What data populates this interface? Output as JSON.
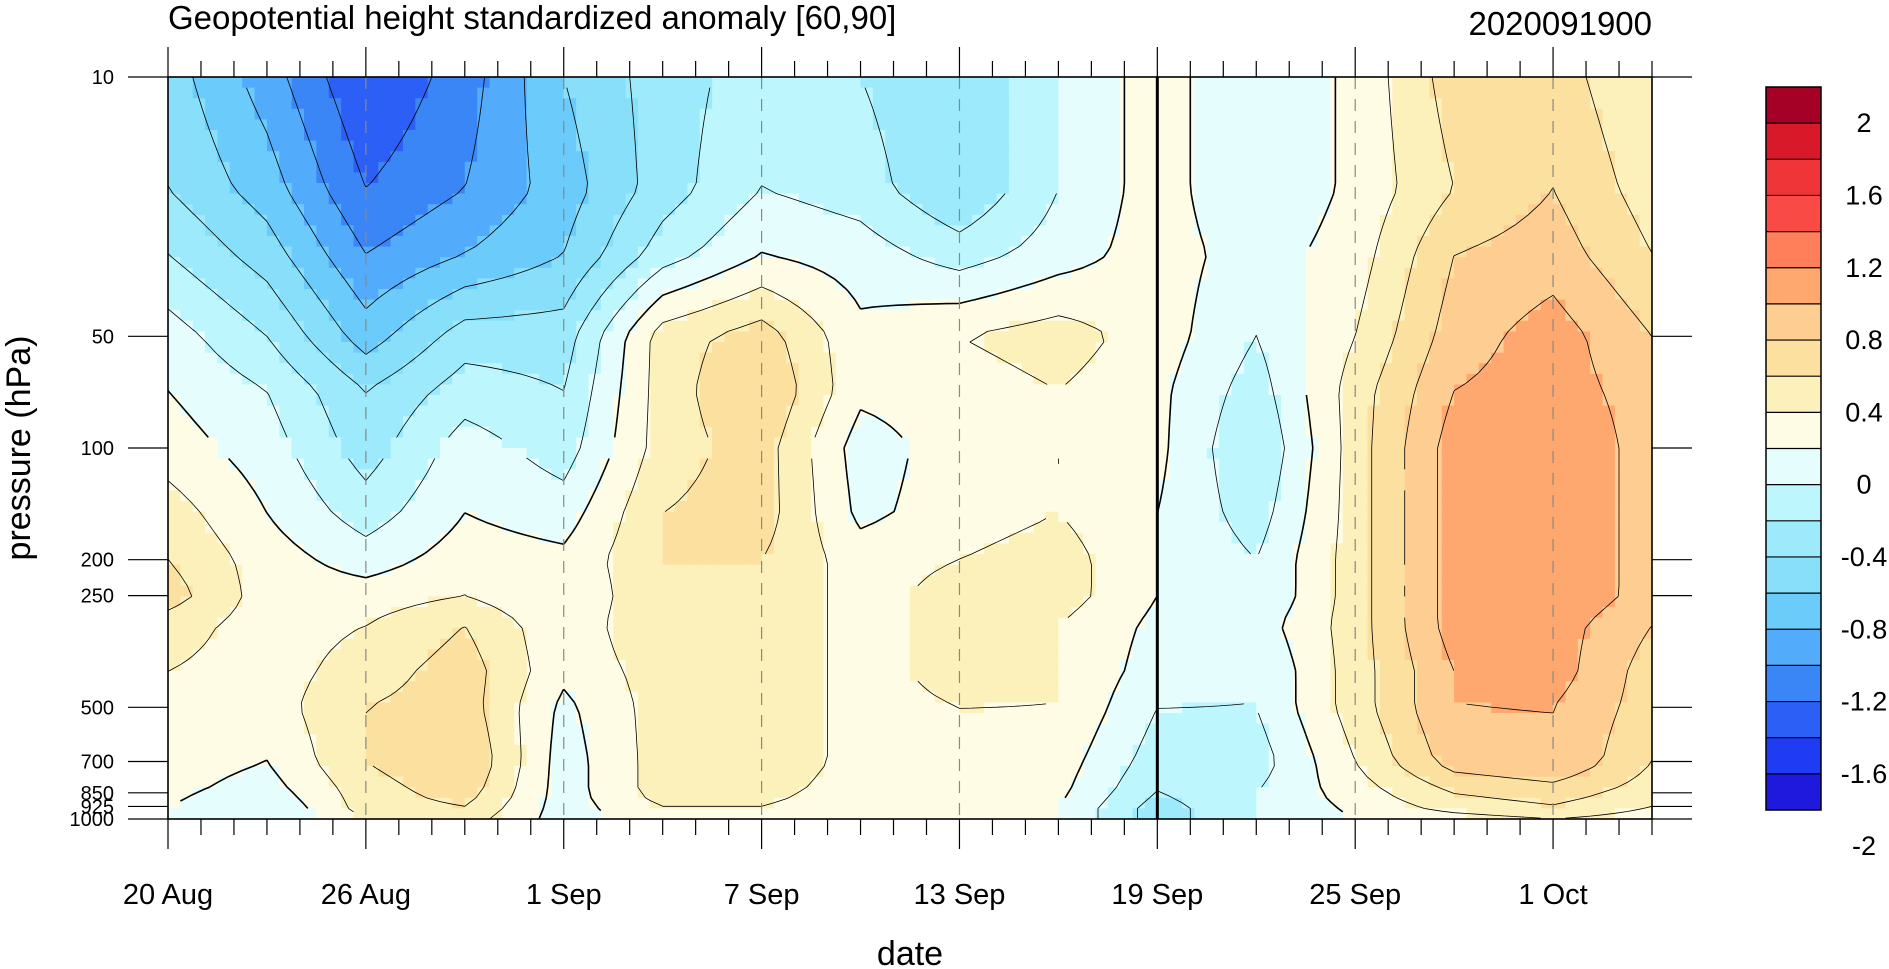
{
  "chart_data": {
    "type": "heatmap",
    "title": "Geopotential height standardized anomaly [60,90]",
    "subtitle": "2020091900",
    "xlabel": "date",
    "ylabel": "pressure (hPa)",
    "x_ticks": [
      {
        "day": 0,
        "label": "20 Aug"
      },
      {
        "day": 6,
        "label": "26 Aug"
      },
      {
        "day": 12,
        "label": "1 Sep"
      },
      {
        "day": 18,
        "label": "7 Sep"
      },
      {
        "day": 24,
        "label": "13 Sep"
      },
      {
        "day": 30,
        "label": "19 Sep"
      },
      {
        "day": 36,
        "label": "25 Sep"
      },
      {
        "day": 42,
        "label": "1 Oct"
      }
    ],
    "x_range_days": [
      0,
      45
    ],
    "y_ticks": [
      10,
      50,
      100,
      200,
      250,
      500,
      700,
      850,
      925,
      1000
    ],
    "y_ticks_labels": [
      "10",
      "50",
      "100",
      "200",
      "250",
      "500",
      "700",
      "850",
      "925",
      "1000"
    ],
    "y_scale": "log-pressure (top 10, bottom 1000)",
    "marker_day": 30,
    "colorbar_labels": [
      "2",
      "1.6",
      "1.2",
      "0.8",
      "0.4",
      "0",
      "-0.4",
      "-0.8",
      "-1.2",
      "-1.6",
      "-2"
    ],
    "colorbar_colors": [
      "#a50026",
      "#d7192a",
      "#f03538",
      "#f94a45",
      "#fe7f5a",
      "#fea870",
      "#fdcd91",
      "#fce09f",
      "#fcf0bb",
      "#fffce6",
      "#e6fdfd",
      "#bdf6fc",
      "#9ceafb",
      "#87dff9",
      "#6bcbfa",
      "#52abfb",
      "#3b86f7",
      "#2c5ff6",
      "#1f3bf4",
      "#1f19de"
    ],
    "anomaly_field": {
      "pressure_levels": [
        10,
        20,
        30,
        50,
        70,
        100,
        150,
        200,
        250,
        300,
        400,
        500,
        700,
        850,
        925,
        1000
      ],
      "day_step": 3,
      "days": [
        0,
        3,
        6,
        9,
        12,
        15,
        18,
        21,
        24,
        27,
        30,
        33,
        36,
        39,
        42,
        45
      ],
      "rows": [
        [
          -0.7,
          -1.1,
          -1.6,
          -1.3,
          -0.8,
          -0.5,
          -0.3,
          -0.4,
          -0.6,
          -0.2,
          0.1,
          -0.2,
          0.05,
          0.5,
          0.5,
          0.2
        ],
        [
          -0.6,
          -0.9,
          -1.4,
          -1.2,
          -0.9,
          -0.5,
          -0.2,
          -0.3,
          -0.6,
          -0.2,
          0.1,
          -0.2,
          0.05,
          0.4,
          0.6,
          0.3
        ],
        [
          -0.4,
          -0.7,
          -1.2,
          -1.0,
          -0.8,
          -0.3,
          0.0,
          -0.1,
          -0.3,
          -0.1,
          0.1,
          -0.1,
          0.1,
          0.6,
          0.7,
          0.4
        ],
        [
          -0.1,
          -0.4,
          -0.9,
          -0.5,
          -0.5,
          0.3,
          0.5,
          0.05,
          0.2,
          0.3,
          0.1,
          -0.2,
          0.2,
          0.7,
          0.9,
          0.6
        ],
        [
          0.0,
          -0.2,
          -0.6,
          -0.3,
          -0.4,
          0.3,
          0.6,
          0.05,
          0.1,
          0.2,
          0.05,
          -0.3,
          0.3,
          0.8,
          0.9,
          0.7
        ],
        [
          0.1,
          -0.1,
          -0.5,
          -0.1,
          -0.3,
          0.3,
          0.5,
          -0.1,
          0.1,
          0.2,
          0.05,
          -0.4,
          0.3,
          0.9,
          1.0,
          0.7
        ],
        [
          0.3,
          0.0,
          -0.3,
          0.0,
          -0.1,
          0.4,
          0.5,
          -0.05,
          0.1,
          0.2,
          0.0,
          -0.3,
          0.3,
          0.9,
          1.0,
          0.7
        ],
        [
          0.4,
          0.1,
          -0.1,
          0.1,
          0.05,
          0.4,
          0.4,
          0.1,
          0.2,
          0.3,
          0.0,
          -0.2,
          0.3,
          0.9,
          1.0,
          0.7
        ],
        [
          0.5,
          0.1,
          0.1,
          0.2,
          0.0,
          0.4,
          0.4,
          0.1,
          0.3,
          0.3,
          0.0,
          -0.2,
          0.3,
          0.9,
          1.0,
          0.7
        ],
        [
          0.3,
          0.1,
          0.2,
          0.4,
          0.05,
          0.4,
          0.4,
          0.1,
          0.3,
          0.2,
          -0.05,
          -0.1,
          0.3,
          0.9,
          0.9,
          0.6
        ],
        [
          0.2,
          0.1,
          0.3,
          0.5,
          0.05,
          0.3,
          0.4,
          0.1,
          0.3,
          0.2,
          -0.1,
          -0.2,
          0.3,
          0.8,
          0.9,
          0.5
        ],
        [
          0.1,
          0.1,
          0.4,
          0.5,
          -0.05,
          0.3,
          0.4,
          0.1,
          0.2,
          0.2,
          -0.2,
          -0.2,
          0.3,
          0.8,
          0.8,
          0.5
        ],
        [
          0.1,
          0.0,
          0.4,
          0.6,
          -0.1,
          0.3,
          0.4,
          0.1,
          0.1,
          0.1,
          -0.3,
          -0.3,
          0.2,
          0.7,
          0.8,
          0.4
        ],
        [
          0.05,
          -0.1,
          0.3,
          0.5,
          -0.1,
          0.3,
          0.3,
          0.05,
          0.1,
          0.05,
          -0.4,
          -0.2,
          0.1,
          0.4,
          0.5,
          0.3
        ],
        [
          0.0,
          -0.2,
          0.3,
          0.4,
          -0.1,
          0.2,
          0.2,
          0.0,
          0.05,
          0.0,
          -0.5,
          -0.2,
          0.05,
          0.3,
          0.4,
          0.2
        ],
        [
          0.0,
          -0.2,
          0.2,
          0.3,
          -0.1,
          0.1,
          0.1,
          0.0,
          0.0,
          0.0,
          -0.5,
          -0.2,
          0.0,
          0.1,
          0.2,
          0.1
        ]
      ]
    }
  }
}
